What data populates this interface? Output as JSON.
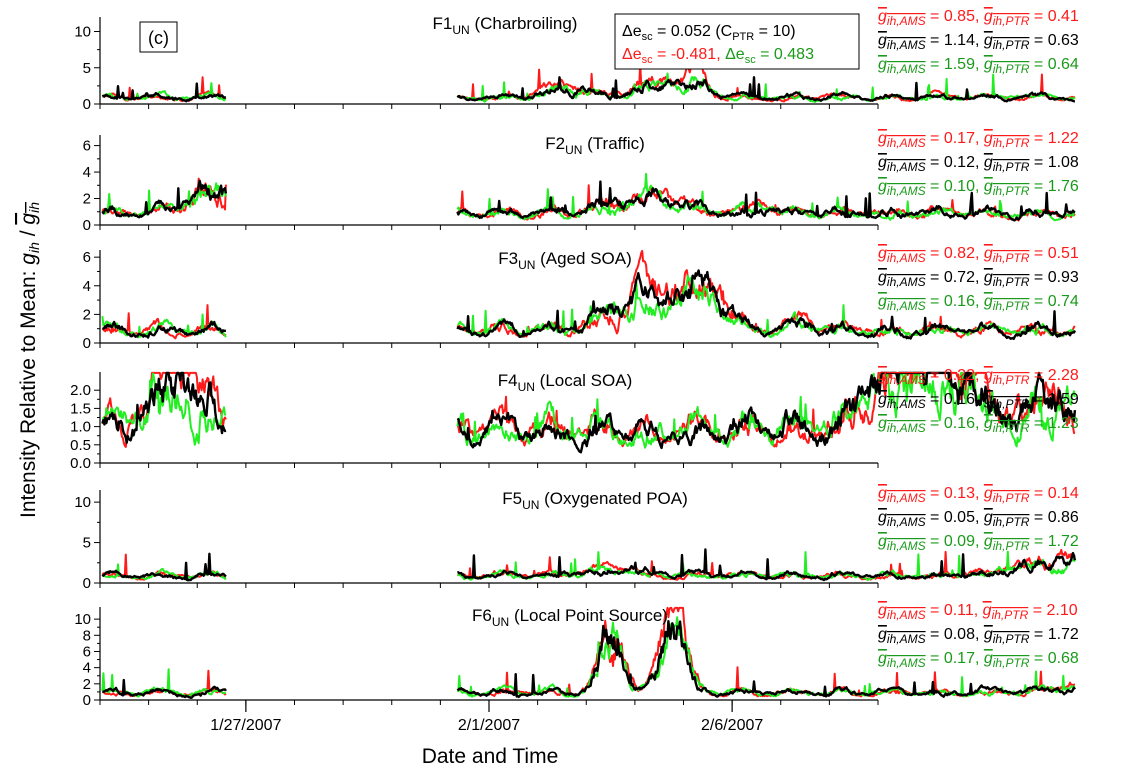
{
  "chart_data": {
    "type": "line",
    "panel_label": "(c)",
    "ylabel": "Intensity Relative to Mean: g_ih / mean(g_ih)",
    "xlabel": "Date and Time",
    "x_ticks": [
      "1/27/2007",
      "2/1/2007",
      "2/6/2007"
    ],
    "x_range": [
      "2007-01-24T00:00",
      "2007-02-09T00:00"
    ],
    "colors": {
      "red": "#ff1a1a",
      "black": "#000000",
      "green": "#22ee22",
      "green_text": "#1a9a1a"
    },
    "info_box": {
      "line1": "Δe_sc = 0.052 (C_PTR = 10)",
      "line2_red": "Δe_sc = -0.481,",
      "line2_green": "Δe_sc = 0.483"
    },
    "panels": [
      {
        "name": "F1_UN (Charbroiling)",
        "ylim": [
          0,
          12
        ],
        "yticks": [
          0,
          5,
          10
        ],
        "features": [
          [
            9.6,
            1.6,
            0.6
          ],
          [
            11.4,
            2.2,
            0.6
          ],
          [
            12.3,
            2.5,
            0.35
          ]
        ],
        "ann": {
          "red": [
            "0.85",
            "0.41"
          ],
          "black": [
            "1.14",
            "0.63"
          ],
          "green": [
            "1.59",
            "0.64"
          ]
        }
      },
      {
        "name": "F2_UN (Traffic)",
        "ylim": [
          0,
          6.8
        ],
        "yticks": [
          0,
          2,
          4,
          6
        ],
        "features": [
          [
            2.4,
            2.0,
            0.7
          ],
          [
            11.2,
            1.2,
            1.0
          ],
          [
            13.7,
            0.6,
            0.3
          ]
        ],
        "ann": {
          "red": [
            "0.17",
            "1.22"
          ],
          "black": [
            "0.12",
            "1.08"
          ],
          "green": [
            "0.10",
            "1.76"
          ]
        }
      },
      {
        "name": "F3_UN (Aged SOA)",
        "ylim": [
          0,
          6.5
        ],
        "yticks": [
          0,
          2,
          4,
          6
        ],
        "features": [
          [
            11.2,
            2.4,
            1.0
          ],
          [
            12.4,
            2.5,
            0.6
          ],
          [
            14.5,
            0.6,
            0.3
          ]
        ],
        "ann": {
          "red": [
            "0.82",
            "0.51"
          ],
          "black": [
            "0.72",
            "0.93"
          ],
          "green": [
            "0.16",
            "0.74"
          ]
        }
      },
      {
        "name": "F4_UN (Local SOA)",
        "ylim": [
          0,
          2.5
        ],
        "yticks": [
          0,
          0.5,
          1.0,
          1.5,
          2.0
        ],
        "features": [
          [
            1.6,
            1.7,
            0.8
          ],
          [
            17.0,
            2.1,
            1.5
          ],
          [
            19.8,
            1.0,
            0.6
          ]
        ],
        "ann": {
          "red": [
            "0.22",
            "2.28"
          ],
          "black": [
            "0.16",
            "1.59"
          ],
          "green": [
            "0.16",
            "1.23"
          ]
        }
      },
      {
        "name": "F5_UN (Oxygenated POA)",
        "ylim": [
          0,
          11.5
        ],
        "yticks": [
          0,
          5,
          10
        ],
        "features": [
          [
            4.2,
            1.0,
            0.5
          ],
          [
            10.5,
            1.0,
            0.8
          ],
          [
            20.0,
            2.2,
            1.5
          ]
        ],
        "ann": {
          "red": [
            "0.13",
            "0.14"
          ],
          "black": [
            "0.05",
            "0.86"
          ],
          "green": [
            "0.09",
            "1.72"
          ]
        }
      },
      {
        "name": "F6_UN (Local Point Source)",
        "ylim": [
          0,
          11.5
        ],
        "yticks": [
          0,
          2,
          4,
          6,
          8,
          10
        ],
        "features": [
          [
            10.5,
            10.4,
            0.3
          ],
          [
            11.8,
            11.2,
            0.35
          ],
          [
            20.5,
            1.0,
            1.0
          ]
        ],
        "ann": {
          "red": [
            "0.11",
            "2.10"
          ],
          "black": [
            "0.08",
            "1.72"
          ],
          "green": [
            "0.17",
            "0.68"
          ]
        }
      }
    ]
  }
}
